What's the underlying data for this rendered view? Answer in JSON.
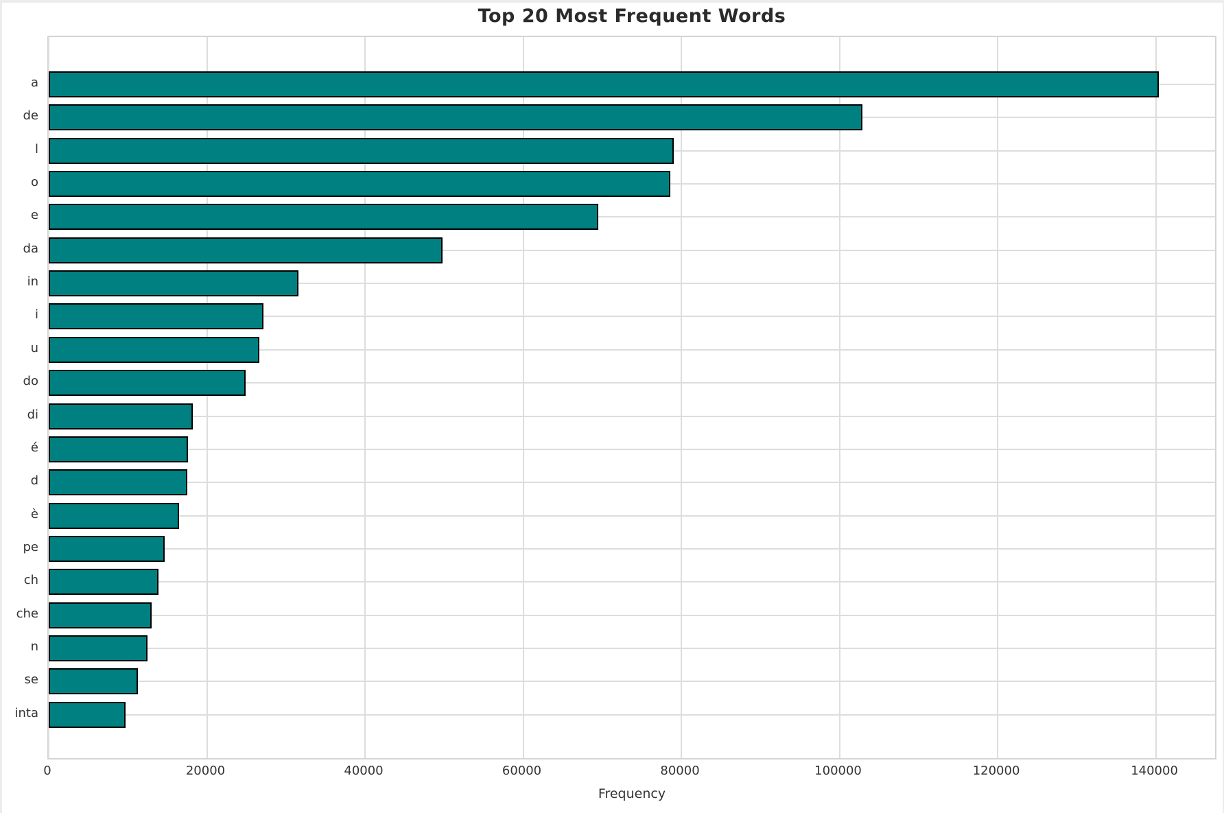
{
  "chart_data": {
    "type": "bar",
    "orientation": "horizontal",
    "title": "Top 20 Most Frequent Words",
    "xlabel": "Frequency",
    "ylabel": "",
    "categories": [
      "a",
      "de",
      "l",
      "o",
      "e",
      "da",
      "in",
      "i",
      "u",
      "do",
      "di",
      "é",
      "d",
      "è",
      "pe",
      "ch",
      "che",
      "n",
      "se",
      "inta"
    ],
    "values": [
      140400,
      102900,
      79000,
      78600,
      69500,
      49800,
      31600,
      27200,
      26600,
      24900,
      18200,
      17600,
      17500,
      16500,
      14700,
      13900,
      13000,
      12500,
      11300,
      9700
    ],
    "xticks": [
      0,
      20000,
      40000,
      60000,
      80000,
      100000,
      120000,
      140000
    ],
    "xtick_labels": [
      "0",
      "20000",
      "40000",
      "60000",
      "80000",
      "100000",
      "120000",
      "140000"
    ],
    "xlim": [
      0,
      147500
    ],
    "grid": true,
    "legend_position": "none",
    "bar_color": "#008080",
    "bar_edge_color": "#000000",
    "grid_color": "#dddddd",
    "background_color": "#ffffff",
    "text_color": "#333333",
    "title_color": "#2b2b2b"
  }
}
